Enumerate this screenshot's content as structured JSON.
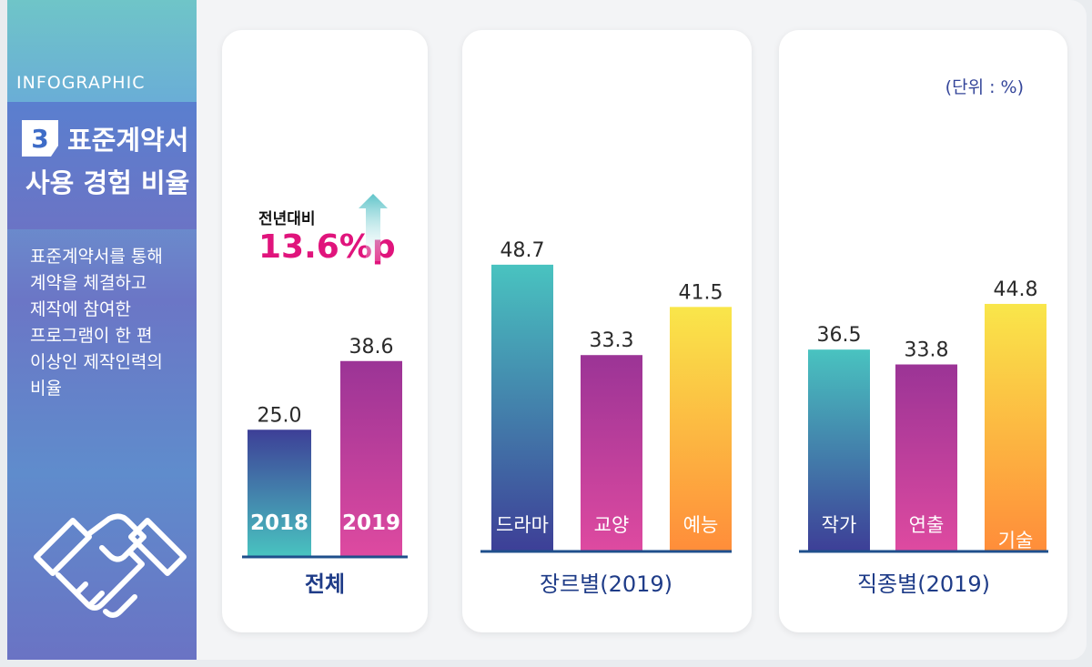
{
  "sidebar": {
    "tag": "INFOGRAPHIC",
    "number": "3",
    "title_line1": "표준계약서",
    "title_line2": "사용 경험 비율",
    "description": [
      "표준계약서를 통해",
      "계약을 체결하고",
      "제작에 참여한",
      "프로그램이 한 편",
      "이상인 제작인력의",
      "비율"
    ],
    "icon": "handshake-icon"
  },
  "unit_label": "(단위 : %)",
  "yoy": {
    "label": "전년대비",
    "value": "13.6%p",
    "icon": "up-arrow-icon"
  },
  "chart_data": [
    {
      "type": "bar",
      "group": "전체",
      "categories": [
        "2018",
        "2019"
      ],
      "values": [
        25.0,
        38.6
      ],
      "ylim": [
        0,
        50
      ]
    },
    {
      "type": "bar",
      "group": "장르별(2019)",
      "categories": [
        "드라마",
        "교양",
        "예능"
      ],
      "values": [
        48.7,
        33.3,
        41.5
      ],
      "ylim": [
        0,
        50
      ]
    },
    {
      "type": "bar",
      "group": "직종별(2019)",
      "categories": [
        "작가",
        "연출",
        "기술"
      ],
      "values": [
        36.5,
        33.8,
        44.8
      ],
      "ylim": [
        0,
        50
      ]
    }
  ],
  "colors": {
    "teal_to_navy": [
      "#49c3c0",
      "#3d3f97"
    ],
    "navy_to_teal": [
      "#3d3f97",
      "#49c3c0"
    ],
    "magenta": [
      "#9b3496",
      "#de4aa0"
    ],
    "yellow_orange": [
      "#f9e64a",
      "#ff8d3a"
    ],
    "accent": "#e0147c",
    "axis": "#1f4f8c"
  }
}
